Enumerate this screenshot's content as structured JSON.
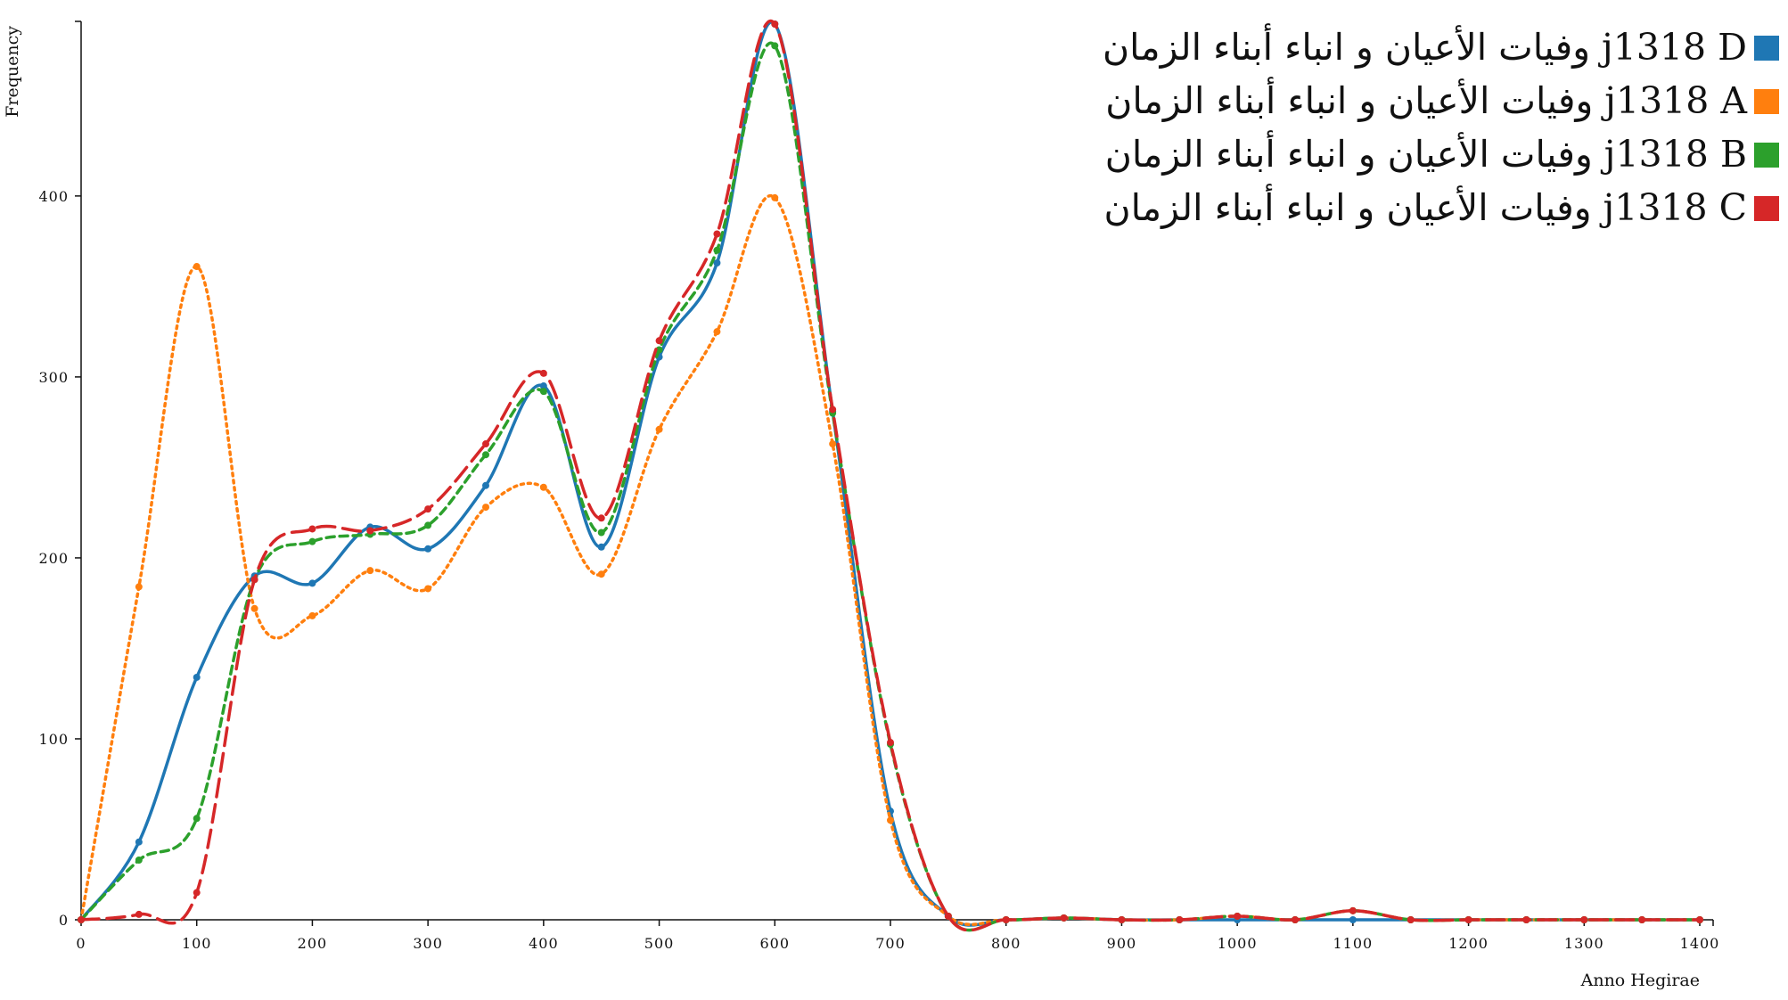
{
  "chart_data": {
    "type": "line",
    "xlabel": "Anno Hegirae",
    "ylabel": "Frequency",
    "xlim": [
      0,
      1400
    ],
    "ylim": [
      0,
      495
    ],
    "x_ticks": [
      0,
      100,
      200,
      300,
      400,
      500,
      600,
      700,
      800,
      900,
      1000,
      1100,
      1200,
      1300,
      1400
    ],
    "y_ticks": [
      0,
      100,
      200,
      300,
      400
    ],
    "x": [
      0,
      50,
      100,
      150,
      200,
      250,
      300,
      350,
      400,
      450,
      500,
      550,
      600,
      650,
      700,
      750,
      800,
      850,
      900,
      950,
      1000,
      1050,
      1100,
      1150,
      1200,
      1250,
      1300,
      1350,
      1400
    ],
    "legend_position": "top-right",
    "series": [
      {
        "name": "وفيات الأعيان و انباء أبناء الزمان j1318 D",
        "color": "#1f77b4",
        "dash": "solid",
        "values": [
          0,
          43,
          134,
          190,
          186,
          217,
          205,
          240,
          295,
          206,
          311,
          363,
          495,
          281,
          60,
          2,
          0,
          1,
          0,
          0,
          0,
          0,
          0,
          0,
          0,
          0,
          0,
          0,
          0
        ]
      },
      {
        "name": "وفيات الأعيان و انباء أبناء الزمان j1318 A",
        "color": "#ff7f0e",
        "dash": "dotted",
        "values": [
          0,
          184,
          361,
          172,
          168,
          193,
          183,
          228,
          239,
          191,
          271,
          325,
          399,
          263,
          55,
          2,
          0,
          1,
          0,
          0,
          2,
          0,
          5,
          0,
          0,
          0,
          0,
          0,
          0
        ]
      },
      {
        "name": "وفيات الأعيان و انباء أبناء الزمان j1318 B",
        "color": "#2ca02c",
        "dash": "dashed",
        "values": [
          0,
          33,
          56,
          188,
          209,
          213,
          218,
          257,
          292,
          214,
          315,
          370,
          483,
          280,
          97,
          2,
          0,
          1,
          0,
          0,
          2,
          0,
          5,
          0,
          0,
          0,
          0,
          0,
          0
        ]
      },
      {
        "name": "وفيات الأعيان و انباء أبناء الزمان j1318 C",
        "color": "#d62728",
        "dash": "longdash",
        "values": [
          0,
          3,
          15,
          188,
          216,
          215,
          227,
          263,
          302,
          222,
          320,
          379,
          495,
          282,
          98,
          2,
          0,
          1,
          0,
          0,
          2,
          0,
          5,
          0,
          0,
          0,
          0,
          0,
          0
        ]
      }
    ]
  }
}
